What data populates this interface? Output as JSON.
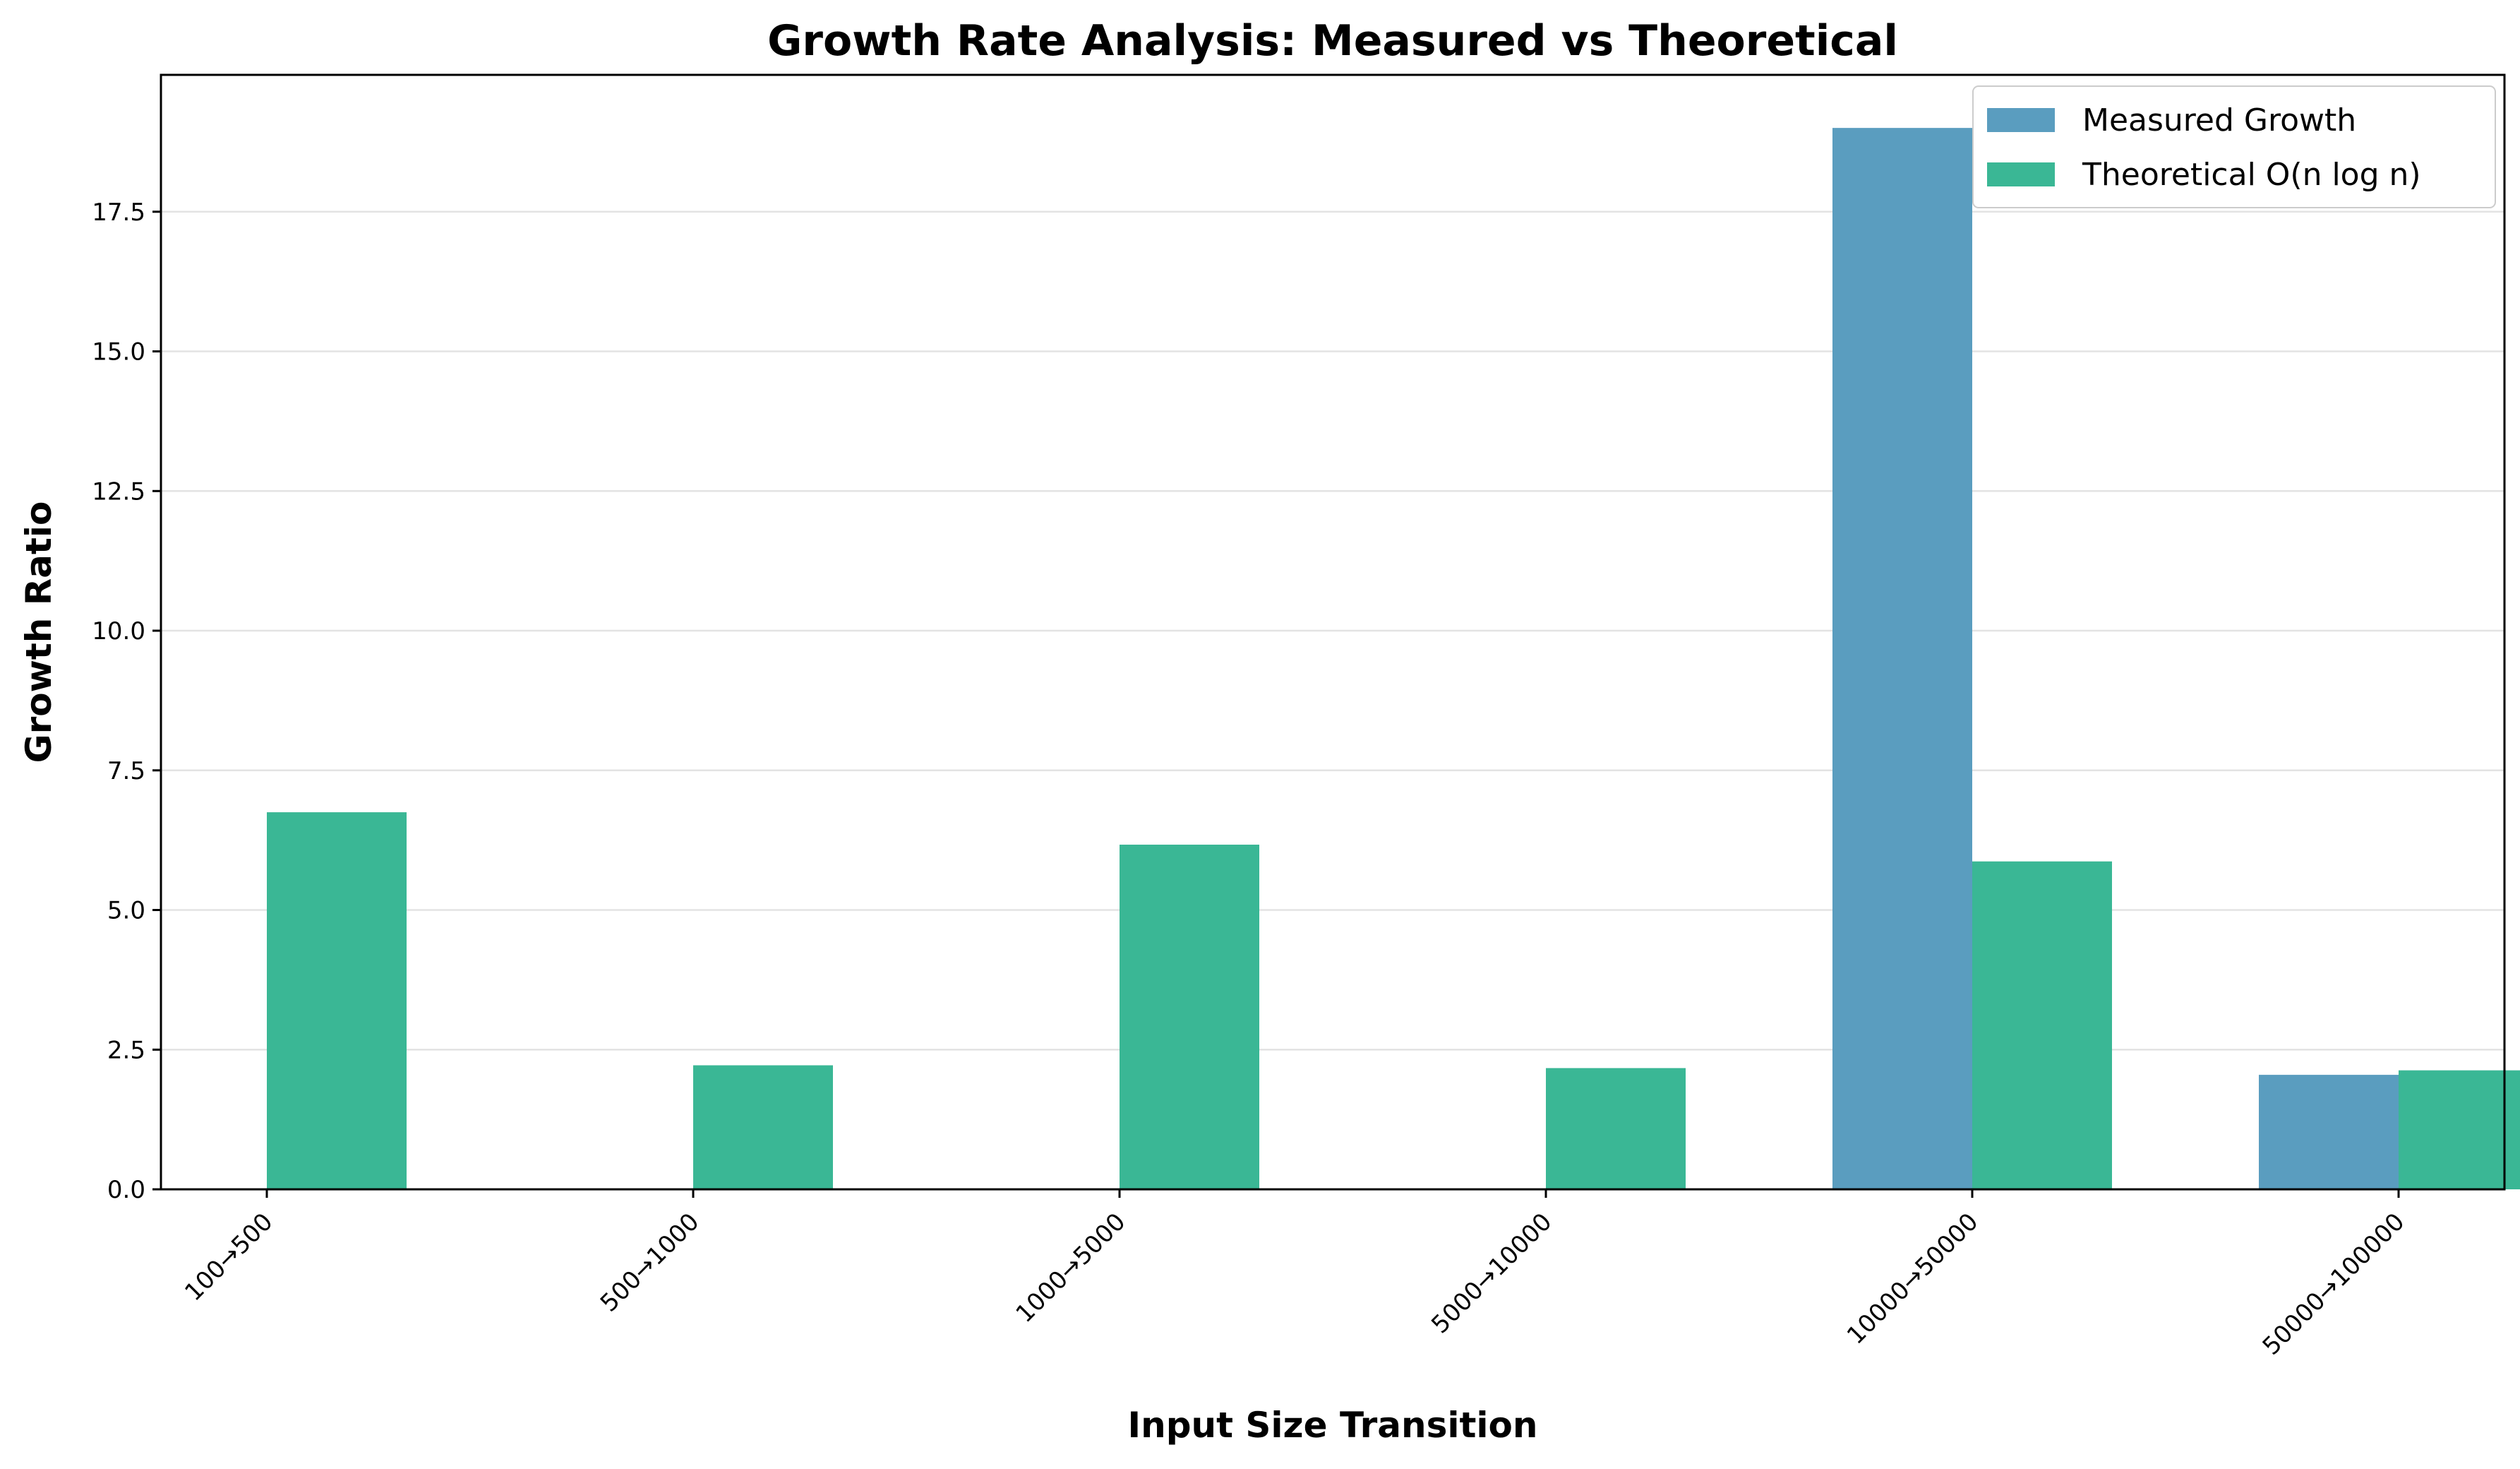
{
  "chart_data": {
    "type": "bar",
    "title": "Growth Rate Analysis: Measured vs Theoretical",
    "xlabel": "Input Size Transition",
    "ylabel": "Growth Ratio",
    "categories": [
      "100→500",
      "500→1000",
      "1000→5000",
      "5000→10000",
      "10000→50000",
      "50000→100000"
    ],
    "series": [
      {
        "name": "Measured Growth",
        "color": "#5A9DBF",
        "values": [
          0,
          0,
          0,
          0,
          19.0,
          2.05
        ]
      },
      {
        "name": "Theoretical O(n log n)",
        "color": "#3AB795",
        "values": [
          6.75,
          2.22,
          6.17,
          2.17,
          5.87,
          2.13
        ]
      }
    ],
    "ylim": [
      0,
      19.95
    ],
    "yticks": [
      "0.0",
      "2.5",
      "5.0",
      "7.5",
      "10.0",
      "12.5",
      "15.0",
      "17.5"
    ],
    "grid": "y",
    "legend_position": "top-right"
  }
}
